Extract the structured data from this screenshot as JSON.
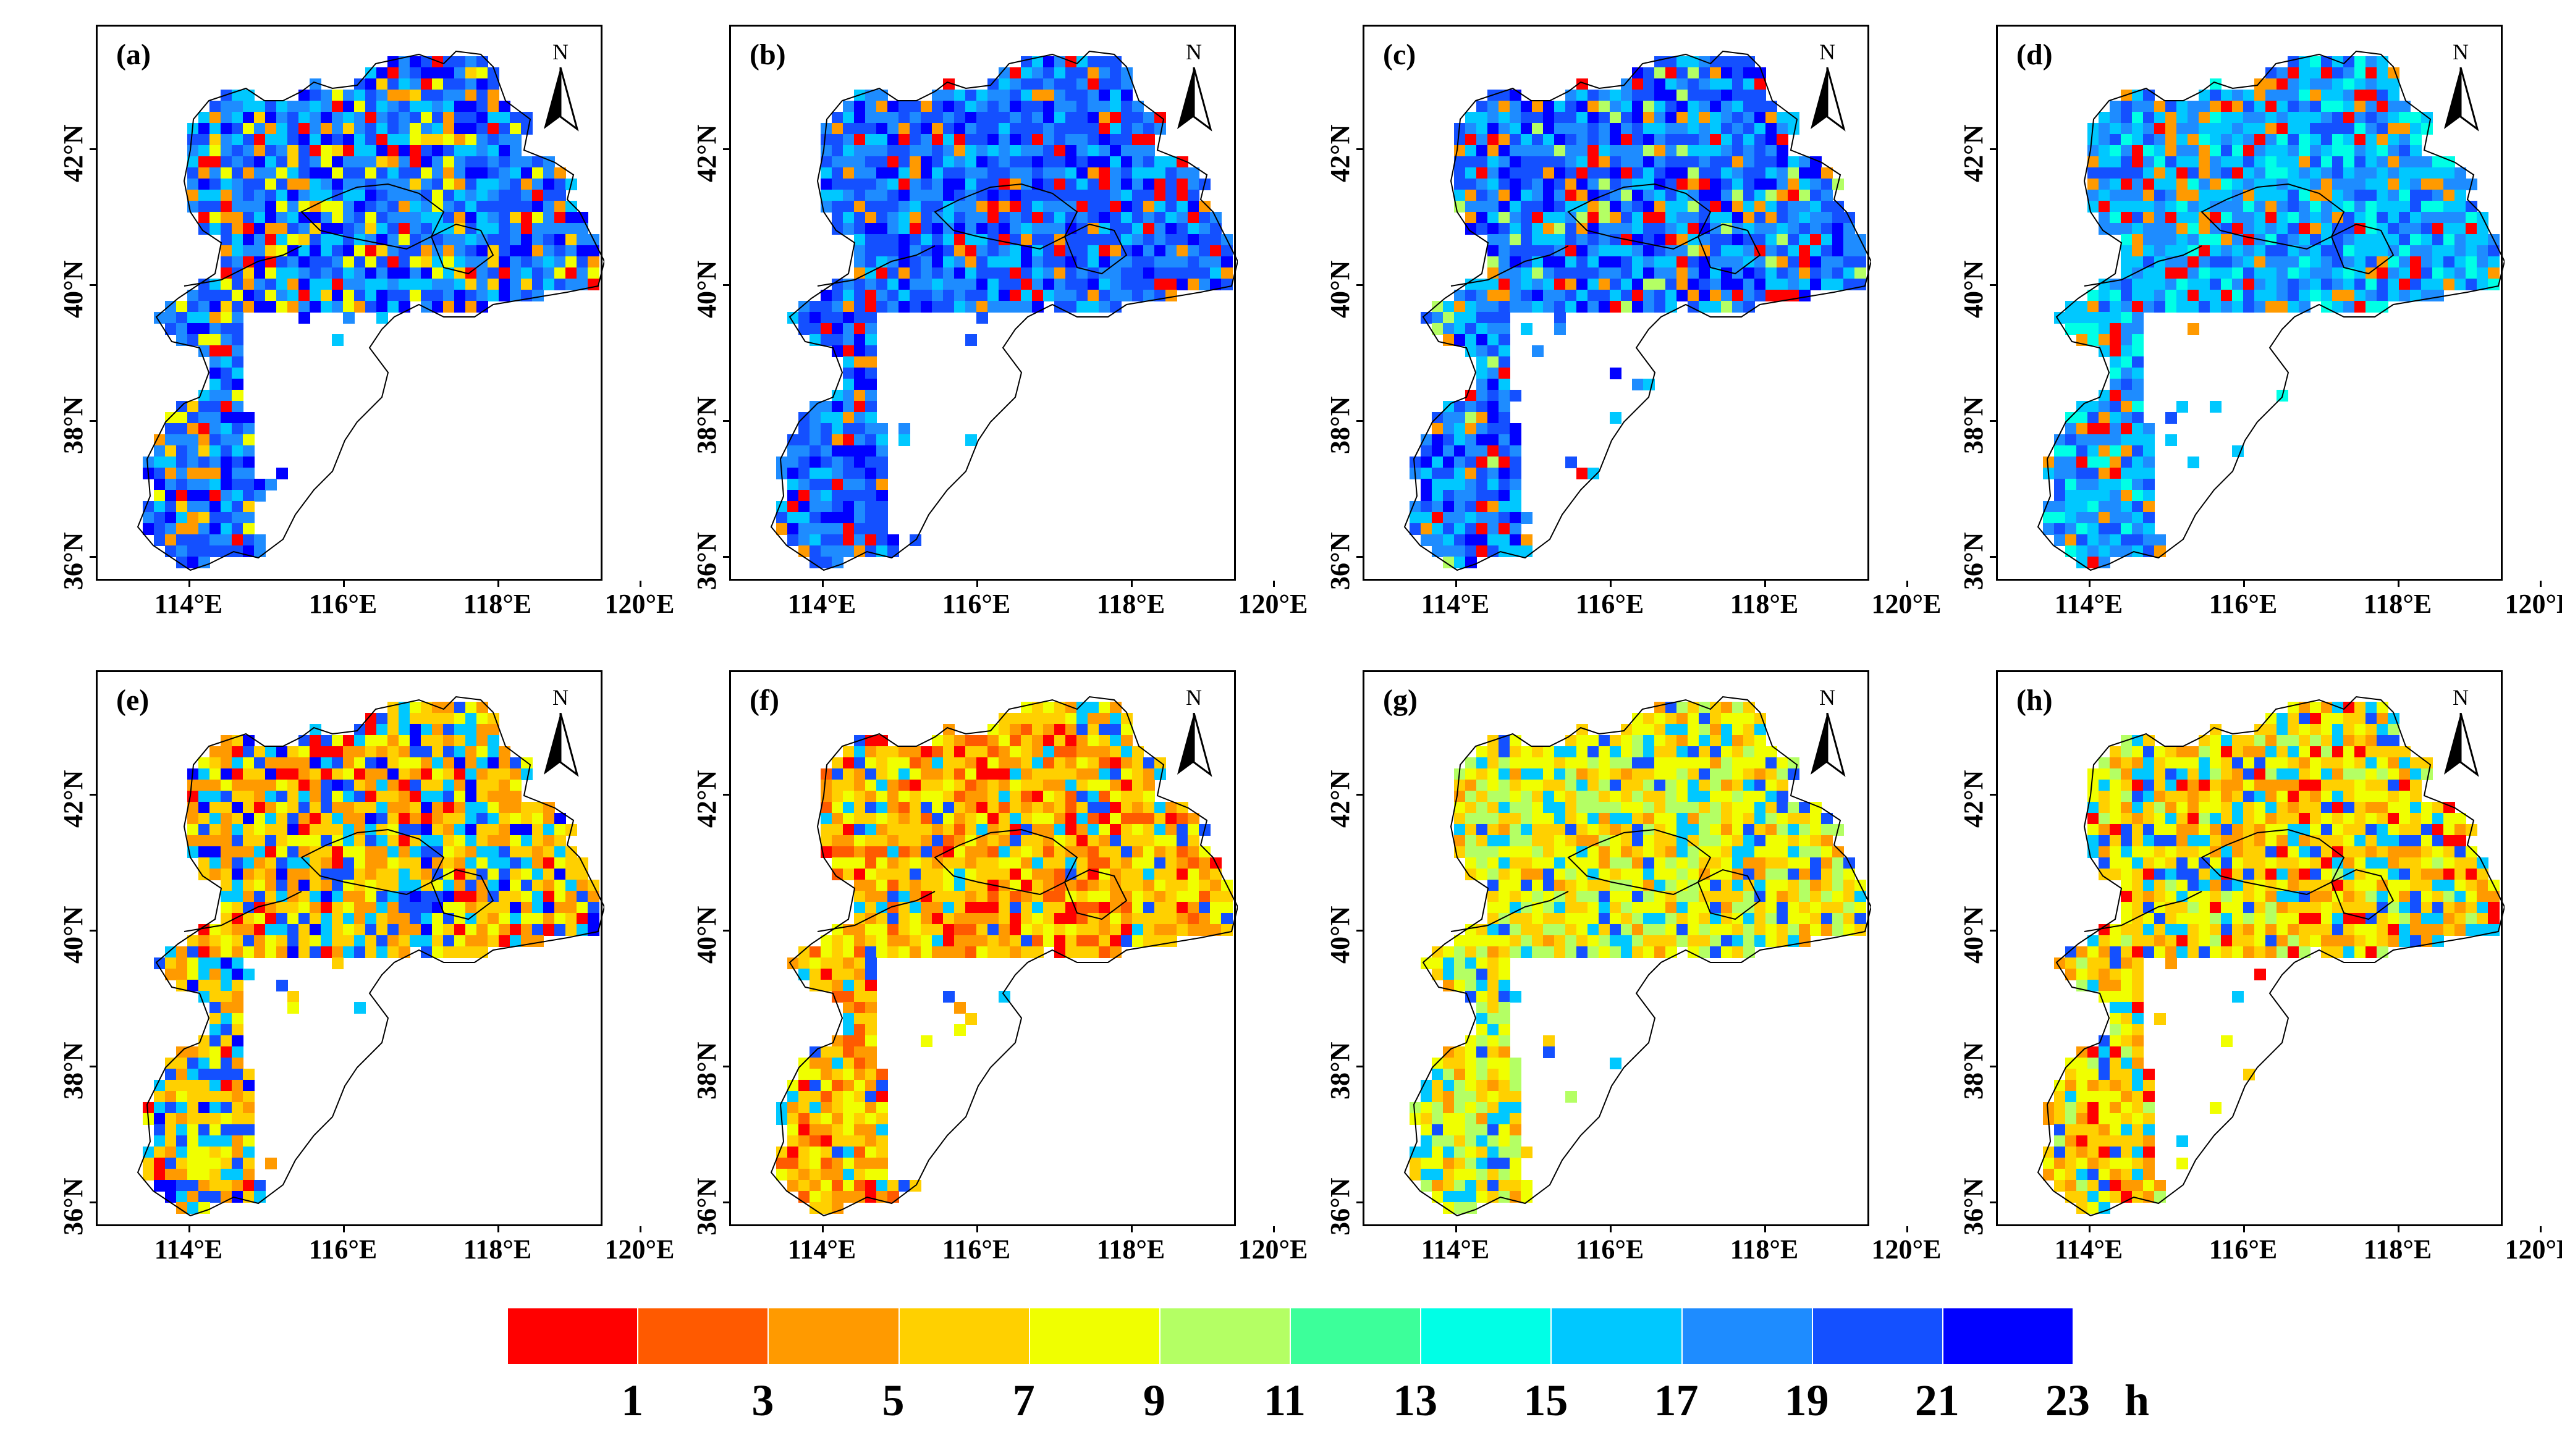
{
  "figure": {
    "panels": [
      {
        "label": "(a)",
        "theme": "blue-mix"
      },
      {
        "label": "(b)",
        "theme": "deep-blue"
      },
      {
        "label": "(c)",
        "theme": "blue-red"
      },
      {
        "label": "(d)",
        "theme": "light-blue"
      },
      {
        "label": "(e)",
        "theme": "yellow-blue"
      },
      {
        "label": "(f)",
        "theme": "yellow-orange"
      },
      {
        "label": "(g)",
        "theme": "yellow-green"
      },
      {
        "label": "(h)",
        "theme": "yellow-mix"
      }
    ],
    "north_arrow": "N",
    "x_ticks": [
      "114°E",
      "116°E",
      "118°E",
      "120°E"
    ],
    "y_ticks": [
      "36°N",
      "38°N",
      "40°N",
      "42°N"
    ]
  },
  "colorbar": {
    "colors": [
      "#ff0000",
      "#ff5a00",
      "#ff9a00",
      "#ffd000",
      "#f0ff00",
      "#b4ff64",
      "#3cff9a",
      "#00ffe6",
      "#00c8ff",
      "#1e8cff",
      "#1450ff",
      "#0000ff"
    ],
    "tick_labels": [
      "1",
      "3",
      "5",
      "7",
      "9",
      "11",
      "13",
      "15",
      "17",
      "19",
      "21",
      "23"
    ],
    "unit": "h"
  }
}
